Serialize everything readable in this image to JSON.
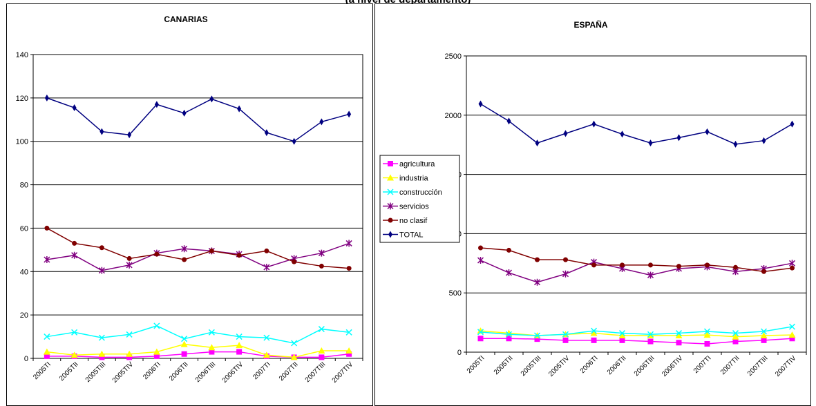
{
  "page_title": "(a nivel de departamento)",
  "chart_data": [
    {
      "type": "line",
      "title": "CANARIAS",
      "categories": [
        "2005TI",
        "2005TII",
        "2005TIII",
        "2005TIV",
        "2006TI",
        "2006TII",
        "2006TIII",
        "2006TIV",
        "2007TI",
        "2007TII",
        "2007TIII",
        "2007TIV"
      ],
      "ylim": [
        0,
        140
      ],
      "yticks": [
        0,
        20,
        40,
        60,
        80,
        100,
        120,
        140
      ],
      "grid": true,
      "series": [
        {
          "name": "agricultura",
          "color": "#ff00ff",
          "marker": "square",
          "values": [
            1,
            1,
            0.5,
            0.5,
            1,
            2,
            3,
            3,
            1,
            0.5,
            0.5,
            2
          ]
        },
        {
          "name": "industria",
          "color": "#ffff00",
          "marker": "triangle",
          "values": [
            3,
            1.5,
            2,
            2,
            3,
            6.5,
            5,
            6,
            1.5,
            0.5,
            3.5,
            3.5
          ]
        },
        {
          "name": "construcción",
          "color": "#00ffff",
          "marker": "x",
          "values": [
            10,
            12,
            9.5,
            11,
            15,
            9,
            12,
            10,
            9.5,
            7,
            13.5,
            12
          ]
        },
        {
          "name": "servicios",
          "color": "#800080",
          "marker": "star",
          "values": [
            45.5,
            47.5,
            40.5,
            43,
            48.5,
            50.5,
            49.5,
            48,
            42,
            46,
            48.5,
            53
          ]
        },
        {
          "name": "no clasif",
          "color": "#800000",
          "marker": "circle",
          "values": [
            60,
            53,
            51,
            46,
            48,
            45.5,
            49.5,
            47.5,
            49.5,
            44.5,
            42.5,
            41.5
          ]
        },
        {
          "name": "TOTAL",
          "color": "#000080",
          "marker": "diamond",
          "values": [
            120,
            115.5,
            104.5,
            103,
            117,
            113,
            119.5,
            115,
            104,
            100,
            109,
            112.5
          ]
        }
      ]
    },
    {
      "type": "line",
      "title": "ESPAÑA",
      "categories": [
        "2005TI",
        "2005TII",
        "2005TIII",
        "2005TIV",
        "2006TI",
        "2006TII",
        "2006TIII",
        "2006TIV",
        "2007TI",
        "2007TII",
        "2007TIII",
        "2007TIV"
      ],
      "ylim": [
        0,
        2500
      ],
      "yticks": [
        0,
        500,
        1000,
        1500,
        2000,
        2500
      ],
      "grid": true,
      "legend": "left",
      "series": [
        {
          "name": "agricultura",
          "color": "#ff00ff",
          "marker": "square",
          "values": [
            115,
            115,
            110,
            100,
            100,
            100,
            90,
            80,
            70,
            90,
            100,
            115
          ]
        },
        {
          "name": "industria",
          "color": "#ffff00",
          "marker": "triangle",
          "values": [
            180,
            160,
            140,
            150,
            160,
            140,
            140,
            140,
            145,
            130,
            140,
            145
          ]
        },
        {
          "name": "construcción",
          "color": "#00ffff",
          "marker": "x",
          "values": [
            170,
            150,
            140,
            150,
            180,
            160,
            150,
            160,
            175,
            160,
            175,
            215
          ]
        },
        {
          "name": "servicios",
          "color": "#800080",
          "marker": "star",
          "values": [
            775,
            670,
            590,
            660,
            760,
            705,
            650,
            705,
            720,
            680,
            705,
            750
          ]
        },
        {
          "name": "no clasif",
          "color": "#800000",
          "marker": "circle",
          "values": [
            880,
            860,
            780,
            780,
            735,
            735,
            735,
            725,
            735,
            715,
            680,
            710
          ]
        },
        {
          "name": "TOTAL",
          "color": "#000080",
          "marker": "diamond",
          "values": [
            2095,
            1950,
            1765,
            1845,
            1925,
            1840,
            1765,
            1810,
            1860,
            1755,
            1785,
            1925
          ]
        }
      ]
    }
  ]
}
